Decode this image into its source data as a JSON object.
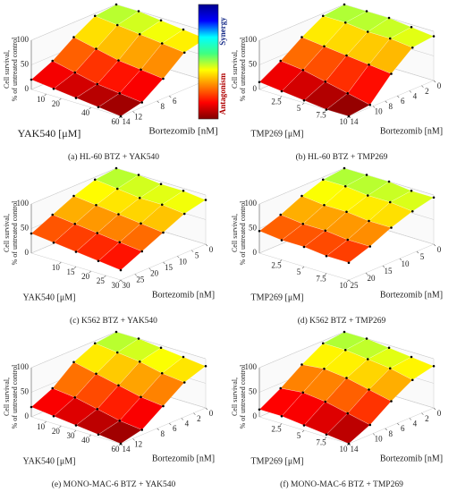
{
  "chart_data": [
    {
      "type": "surface",
      "caption": "(a) HL-60 BTZ + YAK540",
      "xlabel": "YAK540 [μM]",
      "ylabel": "Bortezomib [nM]",
      "zlabel": [
        "Cell survival,",
        "% of untreated control"
      ],
      "xlim": [
        0,
        60
      ],
      "xticks": [
        10,
        20,
        40,
        60
      ],
      "ylim": [
        0,
        14
      ],
      "yticks": [
        6,
        8,
        12,
        14
      ],
      "zlim": [
        0,
        100
      ],
      "zticks": [
        0,
        50,
        100
      ],
      "x": [
        0,
        15,
        30,
        45,
        60
      ],
      "y": [
        0,
        3.5,
        7,
        10.5,
        14
      ],
      "z": [
        [
          100,
          100,
          95,
          90,
          85
        ],
        [
          95,
          90,
          85,
          80,
          75
        ],
        [
          70,
          60,
          50,
          45,
          40
        ],
        [
          40,
          30,
          20,
          15,
          10
        ],
        [
          20,
          15,
          10,
          5,
          0
        ]
      ],
      "colorbar": {
        "labels": [
          "Synergy",
          "Antagonism"
        ],
        "colors": [
          "#00008f",
          "#0000ff",
          "#00ffff",
          "#40ff80",
          "#ffff00",
          "#ff8000",
          "#ff0000",
          "#800000"
        ]
      }
    },
    {
      "type": "surface",
      "caption": "(b) HL-60 BTZ + TMP269",
      "xlabel": "TMP269 [μM]",
      "ylabel": "Bortezomib [nM]",
      "zlabel": [
        "Cell survival,",
        "% of untreated control"
      ],
      "xlim": [
        0,
        10
      ],
      "xticks": [
        2.5,
        5,
        7.5,
        10
      ],
      "ylim": [
        0,
        14
      ],
      "yticks": [
        0,
        2,
        4,
        6,
        8,
        10,
        14
      ],
      "zlim": [
        0,
        100
      ],
      "zticks": [
        0,
        50,
        100
      ],
      "x": [
        0,
        2.5,
        5,
        7.5,
        10
      ],
      "y": [
        0,
        3.5,
        7,
        10.5,
        14
      ],
      "z": [
        [
          100,
          100,
          100,
          95,
          90
        ],
        [
          95,
          95,
          90,
          90,
          85
        ],
        [
          70,
          65,
          60,
          55,
          50
        ],
        [
          40,
          35,
          25,
          15,
          5
        ],
        [
          15,
          10,
          5,
          0,
          0
        ]
      ]
    },
    {
      "type": "surface",
      "caption": "(c) K562 BTZ + YAK540",
      "xlabel": "YAK540 [μM]",
      "ylabel": "Bortezomib [nM]",
      "zlabel": [
        "Cell survival,",
        "% of untreated control"
      ],
      "xlim": [
        0,
        30
      ],
      "xticks": [
        10,
        15,
        20,
        25,
        30
      ],
      "ylim": [
        0,
        30
      ],
      "yticks": [
        0,
        5,
        10,
        15,
        20,
        25,
        30
      ],
      "zlim": [
        0,
        100
      ],
      "zticks": [
        0,
        50,
        100
      ],
      "x": [
        0,
        7.5,
        15,
        22.5,
        30
      ],
      "y": [
        0,
        7.5,
        15,
        22.5,
        30
      ],
      "z": [
        [
          100,
          100,
          95,
          95,
          90
        ],
        [
          95,
          90,
          85,
          85,
          80
        ],
        [
          80,
          75,
          70,
          65,
          60
        ],
        [
          60,
          55,
          50,
          45,
          40
        ],
        [
          40,
          35,
          30,
          25,
          20
        ]
      ]
    },
    {
      "type": "surface",
      "caption": "(d) K562 BTZ + TMP269",
      "xlabel": "TMP269 [μM]",
      "ylabel": "Bortezomib [nM]",
      "zlabel": [
        "Cell survival,",
        "% of untreated control"
      ],
      "xlim": [
        0,
        10
      ],
      "xticks": [
        2.5,
        5,
        7.5,
        10
      ],
      "ylim": [
        0,
        25
      ],
      "yticks": [
        0,
        5,
        10,
        15,
        20,
        25
      ],
      "zlim": [
        0,
        100
      ],
      "zticks": [
        0,
        50,
        100
      ],
      "x": [
        0,
        2.5,
        5,
        7.5,
        10
      ],
      "y": [
        0,
        6.25,
        12.5,
        18.75,
        25
      ],
      "z": [
        [
          100,
          100,
          100,
          95,
          95
        ],
        [
          95,
          95,
          90,
          90,
          85
        ],
        [
          80,
          75,
          75,
          70,
          70
        ],
        [
          60,
          55,
          55,
          50,
          50
        ],
        [
          45,
          40,
          40,
          35,
          35
        ]
      ]
    },
    {
      "type": "surface",
      "caption": "(e) MONO-MAC-6 BTZ + YAK540",
      "xlabel": "YAK540 [μM]",
      "ylabel": "Bortezomib [nM]",
      "zlabel": [
        "Cell survival,",
        "% of untreated control"
      ],
      "xlim": [
        0,
        60
      ],
      "xticks": [
        10,
        20,
        30,
        40,
        60
      ],
      "ylim": [
        0,
        14
      ],
      "yticks": [
        0,
        2,
        4,
        6,
        8,
        12,
        14
      ],
      "zlim": [
        0,
        100
      ],
      "zticks": [
        0,
        50,
        100
      ],
      "x": [
        0,
        15,
        30,
        45,
        60
      ],
      "y": [
        0,
        3.5,
        7,
        10.5,
        14
      ],
      "z": [
        [
          100,
          100,
          95,
          90,
          85
        ],
        [
          95,
          90,
          85,
          75,
          70
        ],
        [
          75,
          65,
          55,
          45,
          40
        ],
        [
          40,
          35,
          25,
          15,
          10
        ],
        [
          20,
          15,
          10,
          5,
          0
        ]
      ]
    },
    {
      "type": "surface",
      "caption": "(f) MONO-MAC-6 BTZ + TMP269",
      "xlabel": "TMP269 [μM]",
      "ylabel": "Bortezomib [nM]",
      "zlabel": [
        "Cell survival,",
        "% of untreated control"
      ],
      "xlim": [
        0,
        10
      ],
      "xticks": [
        2.5,
        5,
        7.5,
        10
      ],
      "ylim": [
        0,
        14
      ],
      "yticks": [
        0,
        2,
        4,
        6,
        8,
        10,
        14
      ],
      "zlim": [
        0,
        100
      ],
      "zticks": [
        0,
        50,
        100
      ],
      "x": [
        0,
        2.5,
        5,
        7.5,
        10
      ],
      "y": [
        0,
        3.5,
        7,
        10.5,
        14
      ],
      "z": [
        [
          100,
          100,
          95,
          90,
          85
        ],
        [
          95,
          95,
          90,
          85,
          75
        ],
        [
          70,
          75,
          70,
          60,
          50
        ],
        [
          40,
          45,
          40,
          30,
          20
        ],
        [
          15,
          15,
          10,
          5,
          0
        ]
      ]
    }
  ]
}
